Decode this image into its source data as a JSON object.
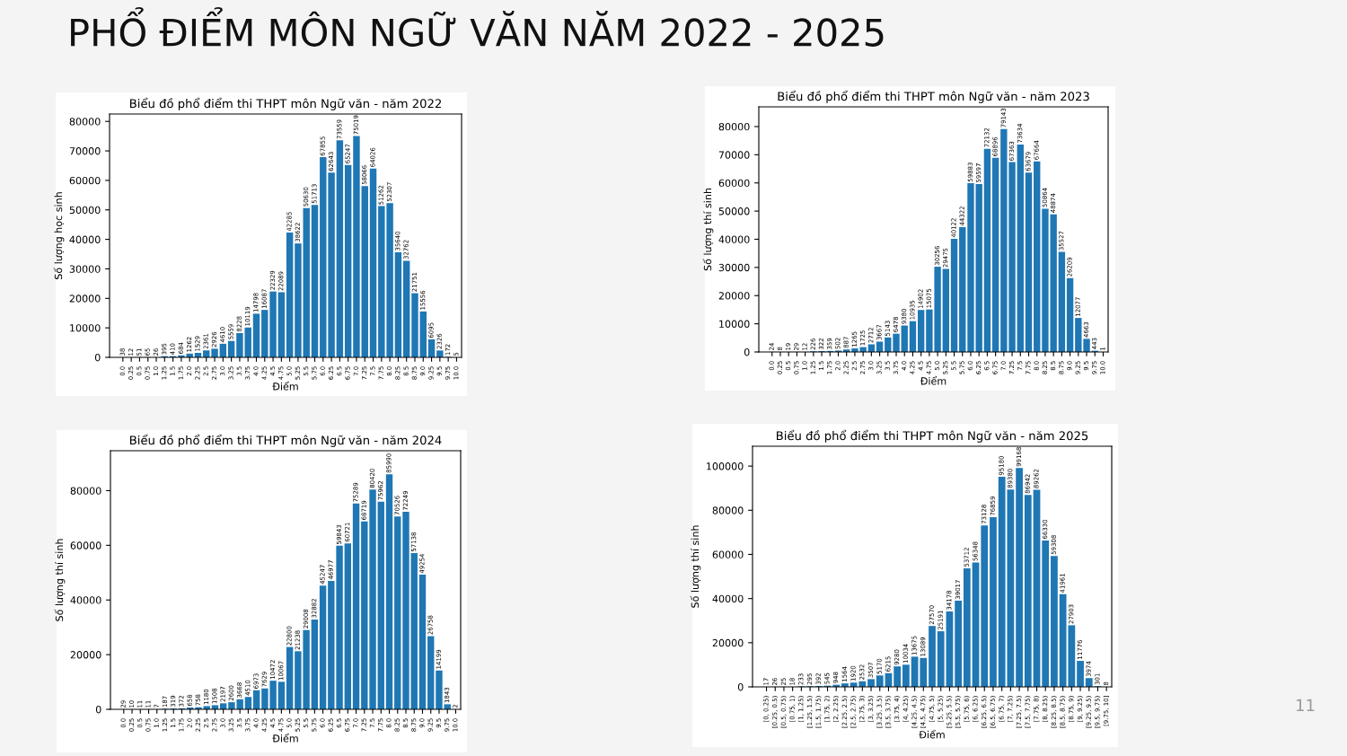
{
  "chart_data": [
    {
      "type": "other",
      "title": "PHỔ ĐIỂM MÔN NGỮ VĂN NĂM 2022 - 2025",
      "annotations": [
        "11"
      ]
    },
    {
      "type": "bar",
      "title": "Biểu đồ phổ điểm thi THPT môn Ngữ văn - năm 2022",
      "xlabel": "Điểm",
      "ylabel": "Số lượng học sinh",
      "categories": [
        "0.0",
        "0.25",
        "0.5",
        "0.75",
        "1.0",
        "1.25",
        "1.5",
        "1.75",
        "2.0",
        "2.25",
        "2.5",
        "2.75",
        "3.0",
        "3.25",
        "3.5",
        "3.75",
        "4.0",
        "4.25",
        "4.5",
        "4.75",
        "5.0",
        "5.25",
        "5.5",
        "5.75",
        "6.0",
        "6.25",
        "6.5",
        "6.75",
        "7.0",
        "7.25",
        "7.5",
        "7.75",
        "8.0",
        "8.25",
        "8.5",
        "8.75",
        "9.0",
        "9.25",
        "9.5",
        "9.75",
        "10.0"
      ],
      "values": [
        38,
        12,
        51,
        65,
        26,
        395,
        410,
        684,
        1262,
        1529,
        2361,
        2926,
        4610,
        5559,
        8228,
        10119,
        14798,
        16087,
        22329,
        22089,
        42285,
        38622,
        50630,
        51713,
        67855,
        62643,
        73559,
        65247,
        75019,
        58066,
        64026,
        51262,
        52307,
        35640,
        32762,
        21751,
        15556,
        6095,
        2326,
        172,
        5
      ],
      "color": "#1f77b4",
      "data_labels": true,
      "ylim": [
        0,
        82500
      ],
      "yticks": [
        0,
        10000,
        20000,
        30000,
        40000,
        50000,
        60000,
        70000,
        80000
      ],
      "grid": false,
      "legend": false
    },
    {
      "type": "bar",
      "title": "Biểu đồ phổ điểm thi THPT môn Ngữ văn - năm 2023",
      "xlabel": "Điểm",
      "ylabel": "Số lượng thí sinh",
      "categories": [
        "0.0",
        "0.25",
        "0.5",
        "0.75",
        "1.0",
        "1.25",
        "1.5",
        "1.75",
        "2.0",
        "2.25",
        "2.5",
        "2.75",
        "3.0",
        "3.25",
        "3.5",
        "3.75",
        "4.0",
        "4.25",
        "4.5",
        "4.75",
        "5.0",
        "5.25",
        "5.5",
        "5.75",
        "6.0",
        "6.25",
        "6.5",
        "6.75",
        "7.0",
        "7.25",
        "7.5",
        "7.75",
        "8.0",
        "8.25",
        "8.5",
        "8.75",
        "9.0",
        "9.25",
        "9.5",
        "9.75",
        "10.0"
      ],
      "values": [
        24,
        8,
        19,
        29,
        12,
        226,
        322,
        359,
        502,
        887,
        1265,
        1725,
        2712,
        3667,
        5143,
        6478,
        9380,
        10935,
        14902,
        15075,
        30256,
        29475,
        40122,
        44322,
        59883,
        59597,
        72132,
        68896,
        79143,
        67363,
        73634,
        63679,
        67664,
        50864,
        48874,
        35527,
        26209,
        12077,
        4663,
        443,
        1
      ],
      "color": "#1f77b4",
      "data_labels": true,
      "ylim": [
        0,
        87000
      ],
      "yticks": [
        0,
        10000,
        20000,
        30000,
        40000,
        50000,
        60000,
        70000,
        80000
      ],
      "grid": false,
      "legend": false
    },
    {
      "type": "bar",
      "title": "Biểu đồ phổ điểm thi THPT môn Ngữ văn - năm 2024",
      "xlabel": "Điểm",
      "ylabel": "Số lượng thí sinh",
      "categories": [
        "0.0",
        "0.25",
        "0.5",
        "0.75",
        "1.0",
        "1.25",
        "1.5",
        "1.75",
        "2.0",
        "2.25",
        "2.5",
        "2.75",
        "3.0",
        "3.25",
        "3.5",
        "3.75",
        "4.0",
        "4.25",
        "4.5",
        "4.75",
        "5.0",
        "5.25",
        "5.5",
        "5.75",
        "6.0",
        "6.25",
        "6.5",
        "6.75",
        "7.0",
        "7.25",
        "7.5",
        "7.75",
        "8.0",
        "8.25",
        "8.5",
        "8.75",
        "9.0",
        "9.25",
        "9.5",
        "9.75",
        "10.0"
      ],
      "values": [
        29,
        10,
        11,
        11,
        7,
        187,
        319,
        372,
        658,
        758,
        1180,
        1508,
        2197,
        2600,
        3668,
        4510,
        6973,
        7629,
        10472,
        10067,
        22800,
        21238,
        29008,
        32882,
        45247,
        46977,
        59843,
        60721,
        75289,
        68719,
        80420,
        75962,
        85990,
        70526,
        72249,
        57138,
        49254,
        26758,
        14199,
        1843,
        2
      ],
      "color": "#1f77b4",
      "data_labels": true,
      "ylim": [
        0,
        94600
      ],
      "yticks": [
        0,
        20000,
        40000,
        60000,
        80000
      ],
      "grid": false,
      "legend": false
    },
    {
      "type": "bar",
      "title": "Biểu đồ phổ điểm thi THPT môn Ngữ văn - năm 2025",
      "xlabel": "Điểm",
      "ylabel": "Số lượng thí sinh",
      "categories": [
        "[0, 0.25)",
        "[0.25, 0.5)",
        "[0.5, 0.75)",
        "[0.75, 1)",
        "[1, 1.25)",
        "[1.25, 1.5)",
        "[1.5, 1.75)",
        "[1.75, 2)",
        "[2, 2.25)",
        "[2.25, 2.5)",
        "[2.5, 2.75)",
        "[2.75, 3)",
        "[3, 3.25)",
        "[3.25, 3.5)",
        "[3.5, 3.75)",
        "[3.75, 4)",
        "[4, 4.25)",
        "[4.25, 4.5)",
        "[4.5, 4.75)",
        "[4.75, 5)",
        "[5, 5.25)",
        "[5.25, 5.5)",
        "[5.5, 5.75)",
        "[5.75, 6)",
        "[6, 6.25)",
        "[6.25, 6.5)",
        "[6.5, 6.75)",
        "[6.75, 7)",
        "[7, 7.25)",
        "[7.25, 7.5)",
        "[7.5, 7.75)",
        "[7.75, 8)",
        "[8, 8.25)",
        "[8.25, 8.5)",
        "[8.5, 8.75)",
        "[8.75, 9)",
        "[9, 9.25)",
        "[9.25, 9.5)",
        "[9.5, 9.75)",
        "[9.75, 10]"
      ],
      "values": [
        17,
        26,
        25,
        18,
        233,
        295,
        392,
        545,
        948,
        1564,
        1920,
        2532,
        3507,
        5170,
        6215,
        9280,
        10034,
        13675,
        13089,
        27570,
        25191,
        34178,
        39017,
        53712,
        56348,
        73128,
        76859,
        95180,
        89380,
        99168,
        86942,
        89262,
        66330,
        59308,
        41961,
        27903,
        11776,
        3974,
        301,
        8
      ],
      "color": "#1f77b4",
      "data_labels": true,
      "ylim": [
        0,
        109000
      ],
      "yticks": [
        0,
        20000,
        40000,
        60000,
        80000,
        100000
      ],
      "grid": false,
      "legend": false
    }
  ]
}
